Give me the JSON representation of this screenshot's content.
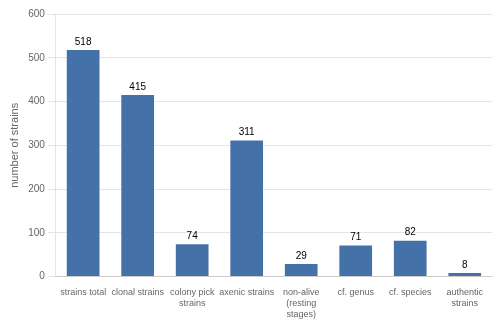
{
  "chart_data": {
    "type": "bar",
    "categories": [
      "strains total",
      "clonal strains",
      "colony pick\nstrains",
      "axenic strains",
      "non-alive\n(resting\nstages)",
      "cf. genus",
      "cf. species",
      "authentic\nstrains"
    ],
    "values": [
      518,
      415,
      74,
      311,
      29,
      71,
      82,
      8
    ],
    "color": "#4472a8",
    "ylabel": "number of strains",
    "ylim": [
      0,
      600
    ],
    "yticks": [
      0,
      100,
      200,
      300,
      400,
      500,
      600
    ],
    "grid": true,
    "data_labels": true
  }
}
